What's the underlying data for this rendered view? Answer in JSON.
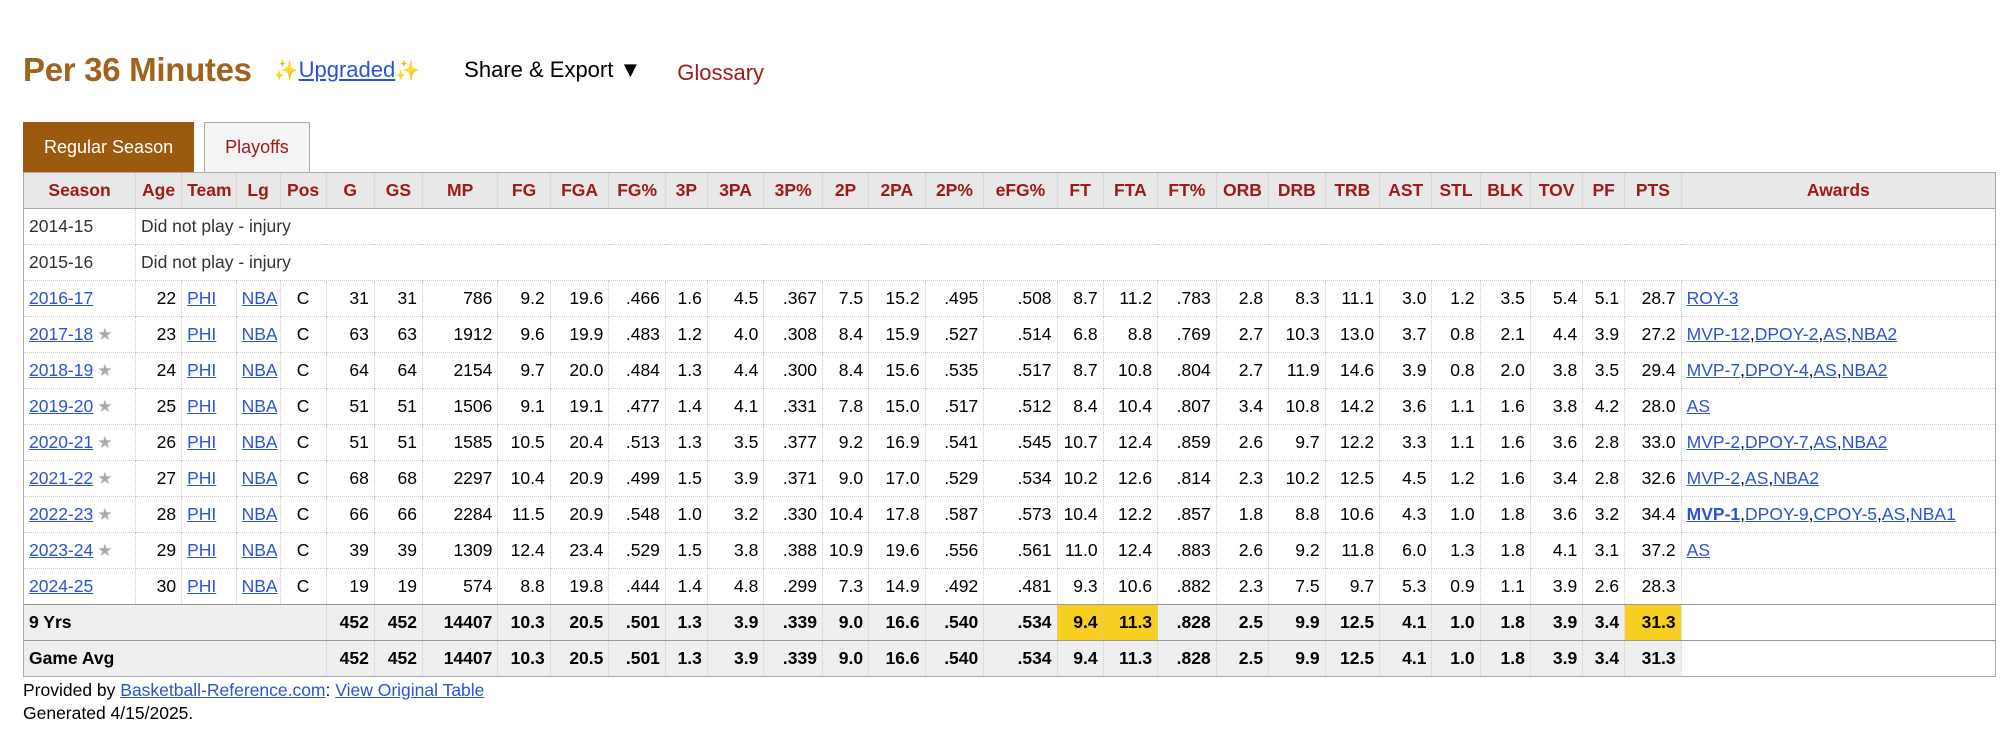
{
  "header": {
    "title": "Per 36 Minutes",
    "sparkle": "✨",
    "upgraded": "Upgraded",
    "share": "Share & Export ▼",
    "glossary": "Glossary"
  },
  "tabs": [
    "Regular Season",
    "Playoffs"
  ],
  "columns": [
    "Season",
    "Age",
    "Team",
    "Lg",
    "Pos",
    "G",
    "GS",
    "MP",
    "FG",
    "FGA",
    "FG%",
    "3P",
    "3PA",
    "3P%",
    "2P",
    "2PA",
    "2P%",
    "eFG%",
    "FT",
    "FTA",
    "FT%",
    "ORB",
    "DRB",
    "TRB",
    "AST",
    "STL",
    "BLK",
    "TOV",
    "PF",
    "PTS",
    "Awards"
  ],
  "dnp_rows": [
    {
      "season": "2014-15",
      "note": "Did not play - injury"
    },
    {
      "season": "2015-16",
      "note": "Did not play - injury"
    }
  ],
  "rows": [
    {
      "season": "2016-17",
      "star": false,
      "age": "22",
      "team": "PHI",
      "lg": "NBA",
      "pos": "C",
      "g": "31",
      "gs": "31",
      "mp": "786",
      "fg": "9.2",
      "fga": "19.6",
      "fgp": ".466",
      "p3": "1.6",
      "p3a": "4.5",
      "p3p": ".367",
      "p2": "7.5",
      "p2a": "15.2",
      "p2p": ".495",
      "efg": ".508",
      "ft": "8.7",
      "fta": "11.2",
      "ftp": ".783",
      "orb": "2.8",
      "drb": "8.3",
      "trb": "11.1",
      "ast": "3.0",
      "stl": "1.2",
      "blk": "3.5",
      "tov": "5.4",
      "pf": "5.1",
      "pts": "28.7",
      "awards": [
        {
          "t": "ROY-3",
          "b": false
        }
      ]
    },
    {
      "season": "2017-18",
      "star": true,
      "age": "23",
      "team": "PHI",
      "lg": "NBA",
      "pos": "C",
      "g": "63",
      "gs": "63",
      "mp": "1912",
      "fg": "9.6",
      "fga": "19.9",
      "fgp": ".483",
      "p3": "1.2",
      "p3a": "4.0",
      "p3p": ".308",
      "p2": "8.4",
      "p2a": "15.9",
      "p2p": ".527",
      "efg": ".514",
      "ft": "6.8",
      "fta": "8.8",
      "ftp": ".769",
      "orb": "2.7",
      "drb": "10.3",
      "trb": "13.0",
      "ast": "3.7",
      "stl": "0.8",
      "blk": "2.1",
      "tov": "4.4",
      "pf": "3.9",
      "pts": "27.2",
      "awards": [
        {
          "t": "MVP-12",
          "b": false
        },
        {
          "t": "DPOY-2",
          "b": false
        },
        {
          "t": "AS",
          "b": false
        },
        {
          "t": "NBA2",
          "b": false
        }
      ]
    },
    {
      "season": "2018-19",
      "star": true,
      "age": "24",
      "team": "PHI",
      "lg": "NBA",
      "pos": "C",
      "g": "64",
      "gs": "64",
      "mp": "2154",
      "fg": "9.7",
      "fga": "20.0",
      "fgp": ".484",
      "p3": "1.3",
      "p3a": "4.4",
      "p3p": ".300",
      "p2": "8.4",
      "p2a": "15.6",
      "p2p": ".535",
      "efg": ".517",
      "ft": "8.7",
      "fta": "10.8",
      "ftp": ".804",
      "orb": "2.7",
      "drb": "11.9",
      "trb": "14.6",
      "ast": "3.9",
      "stl": "0.8",
      "blk": "2.0",
      "tov": "3.8",
      "pf": "3.5",
      "pts": "29.4",
      "awards": [
        {
          "t": "MVP-7",
          "b": false
        },
        {
          "t": "DPOY-4",
          "b": false
        },
        {
          "t": "AS",
          "b": false
        },
        {
          "t": "NBA2",
          "b": false
        }
      ]
    },
    {
      "season": "2019-20",
      "star": true,
      "age": "25",
      "team": "PHI",
      "lg": "NBA",
      "pos": "C",
      "g": "51",
      "gs": "51",
      "mp": "1506",
      "fg": "9.1",
      "fga": "19.1",
      "fgp": ".477",
      "p3": "1.4",
      "p3a": "4.1",
      "p3p": ".331",
      "p2": "7.8",
      "p2a": "15.0",
      "p2p": ".517",
      "efg": ".512",
      "ft": "8.4",
      "fta": "10.4",
      "ftp": ".807",
      "orb": "3.4",
      "drb": "10.8",
      "trb": "14.2",
      "ast": "3.6",
      "stl": "1.1",
      "blk": "1.6",
      "tov": "3.8",
      "pf": "4.2",
      "pts": "28.0",
      "awards": [
        {
          "t": "AS",
          "b": false
        }
      ]
    },
    {
      "season": "2020-21",
      "star": true,
      "age": "26",
      "team": "PHI",
      "lg": "NBA",
      "pos": "C",
      "g": "51",
      "gs": "51",
      "mp": "1585",
      "fg": "10.5",
      "fga": "20.4",
      "fgp": ".513",
      "p3": "1.3",
      "p3a": "3.5",
      "p3p": ".377",
      "p2": "9.2",
      "p2a": "16.9",
      "p2p": ".541",
      "efg": ".545",
      "ft": "10.7",
      "fta": "12.4",
      "ftp": ".859",
      "orb": "2.6",
      "drb": "9.7",
      "trb": "12.2",
      "ast": "3.3",
      "stl": "1.1",
      "blk": "1.6",
      "tov": "3.6",
      "pf": "2.8",
      "pts": "33.0",
      "awards": [
        {
          "t": "MVP-2",
          "b": false
        },
        {
          "t": "DPOY-7",
          "b": false
        },
        {
          "t": "AS",
          "b": false
        },
        {
          "t": "NBA2",
          "b": false
        }
      ]
    },
    {
      "season": "2021-22",
      "star": true,
      "age": "27",
      "team": "PHI",
      "lg": "NBA",
      "pos": "C",
      "g": "68",
      "gs": "68",
      "mp": "2297",
      "fg": "10.4",
      "fga": "20.9",
      "fgp": ".499",
      "p3": "1.5",
      "p3a": "3.9",
      "p3p": ".371",
      "p2": "9.0",
      "p2a": "17.0",
      "p2p": ".529",
      "efg": ".534",
      "ft": "10.2",
      "fta": "12.6",
      "ftp": ".814",
      "orb": "2.3",
      "drb": "10.2",
      "trb": "12.5",
      "ast": "4.5",
      "stl": "1.2",
      "blk": "1.6",
      "tov": "3.4",
      "pf": "2.8",
      "pts": "32.6",
      "awards": [
        {
          "t": "MVP-2",
          "b": false
        },
        {
          "t": "AS",
          "b": false
        },
        {
          "t": "NBA2",
          "b": false
        }
      ]
    },
    {
      "season": "2022-23",
      "star": true,
      "age": "28",
      "team": "PHI",
      "lg": "NBA",
      "pos": "C",
      "g": "66",
      "gs": "66",
      "mp": "2284",
      "fg": "11.5",
      "fga": "20.9",
      "fgp": ".548",
      "p3": "1.0",
      "p3a": "3.2",
      "p3p": ".330",
      "p2": "10.4",
      "p2a": "17.8",
      "p2p": ".587",
      "efg": ".573",
      "ft": "10.4",
      "fta": "12.2",
      "ftp": ".857",
      "orb": "1.8",
      "drb": "8.8",
      "trb": "10.6",
      "ast": "4.3",
      "stl": "1.0",
      "blk": "1.8",
      "tov": "3.6",
      "pf": "3.2",
      "pts": "34.4",
      "awards": [
        {
          "t": "MVP-1",
          "b": true
        },
        {
          "t": "DPOY-9",
          "b": false
        },
        {
          "t": "CPOY-5",
          "b": false
        },
        {
          "t": "AS",
          "b": false
        },
        {
          "t": "NBA1",
          "b": false
        }
      ]
    },
    {
      "season": "2023-24",
      "star": true,
      "age": "29",
      "team": "PHI",
      "lg": "NBA",
      "pos": "C",
      "g": "39",
      "gs": "39",
      "mp": "1309",
      "fg": "12.4",
      "fga": "23.4",
      "fgp": ".529",
      "p3": "1.5",
      "p3a": "3.8",
      "p3p": ".388",
      "p2": "10.9",
      "p2a": "19.6",
      "p2p": ".556",
      "efg": ".561",
      "ft": "11.0",
      "fta": "12.4",
      "ftp": ".883",
      "orb": "2.6",
      "drb": "9.2",
      "trb": "11.8",
      "ast": "6.0",
      "stl": "1.3",
      "blk": "1.8",
      "tov": "4.1",
      "pf": "3.1",
      "pts": "37.2",
      "awards": [
        {
          "t": "AS",
          "b": false
        }
      ]
    },
    {
      "season": "2024-25",
      "star": false,
      "age": "30",
      "team": "PHI",
      "lg": "NBA",
      "pos": "C",
      "g": "19",
      "gs": "19",
      "mp": "574",
      "fg": "8.8",
      "fga": "19.8",
      "fgp": ".444",
      "p3": "1.4",
      "p3a": "4.8",
      "p3p": ".299",
      "p2": "7.3",
      "p2a": "14.9",
      "p2p": ".492",
      "efg": ".481",
      "ft": "9.3",
      "fta": "10.6",
      "ftp": ".882",
      "orb": "2.3",
      "drb": "7.5",
      "trb": "9.7",
      "ast": "5.3",
      "stl": "0.9",
      "blk": "1.1",
      "tov": "3.9",
      "pf": "2.6",
      "pts": "28.3",
      "awards": []
    }
  ],
  "totals": [
    {
      "label": "9 Yrs",
      "g": "452",
      "gs": "452",
      "mp": "14407",
      "fg": "10.3",
      "fga": "20.5",
      "fgp": ".501",
      "p3": "1.3",
      "p3a": "3.9",
      "p3p": ".339",
      "p2": "9.0",
      "p2a": "16.6",
      "p2p": ".540",
      "efg": ".534",
      "ft": "9.4",
      "fta": "11.3",
      "ftp": ".828",
      "orb": "2.5",
      "drb": "9.9",
      "trb": "12.5",
      "ast": "4.1",
      "stl": "1.0",
      "blk": "1.8",
      "tov": "3.9",
      "pf": "3.4",
      "pts": "31.3",
      "highlight": [
        "ft",
        "fta",
        "pts"
      ]
    },
    {
      "label": "Game Avg",
      "g": "452",
      "gs": "452",
      "mp": "14407",
      "fg": "10.3",
      "fga": "20.5",
      "fgp": ".501",
      "p3": "1.3",
      "p3a": "3.9",
      "p3p": ".339",
      "p2": "9.0",
      "p2a": "16.6",
      "p2p": ".540",
      "efg": ".534",
      "ft": "9.4",
      "fta": "11.3",
      "ftp": ".828",
      "orb": "2.5",
      "drb": "9.9",
      "trb": "12.5",
      "ast": "4.1",
      "stl": "1.0",
      "blk": "1.8",
      "tov": "3.9",
      "pf": "3.4",
      "pts": "31.3",
      "highlight": []
    }
  ],
  "footer": {
    "provided_by": "Provided by ",
    "source_link": "Basketball-Reference.com",
    "colon": ": ",
    "view_link": "View Original Table",
    "generated": "Generated 4/15/2025."
  },
  "colors": {
    "title": "#a0621c",
    "tab_active": "#9b5a0d",
    "header_text": "#a01a1a",
    "highlight": "#f7cf20",
    "link": "#2b53d6"
  }
}
